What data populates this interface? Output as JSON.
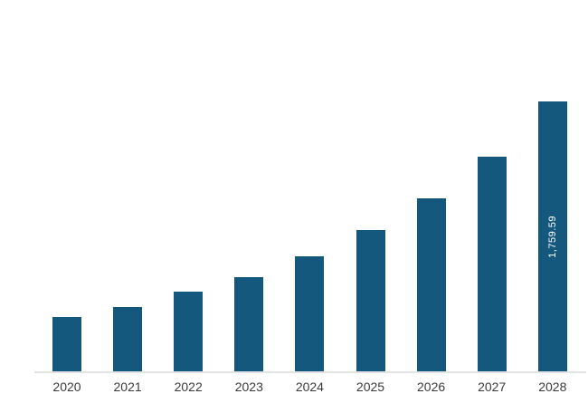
{
  "chart_data": {
    "type": "bar",
    "title": "",
    "xlabel": "",
    "ylabel": "",
    "categories": [
      "2020",
      "2021",
      "2022",
      "2023",
      "2024",
      "2025",
      "2026",
      "2027",
      "2028"
    ],
    "values": [
      355,
      421,
      519,
      613,
      752,
      919,
      1130,
      1398,
      1759.59
    ],
    "data_labels": [
      "",
      "",
      "",
      "",
      "",
      "",
      "",
      "",
      "1,759.59"
    ],
    "ylim": [
      0,
      1760
    ],
    "grid": false,
    "legend": false,
    "y_axis_visible": false,
    "colors": {
      "bar_fill": "#15587D",
      "bar_label_text": "#FFFFFF",
      "axis_line": "#E3E3E3",
      "tick_label_text": "#3A3A3A",
      "background": "#FFFFFF"
    }
  }
}
